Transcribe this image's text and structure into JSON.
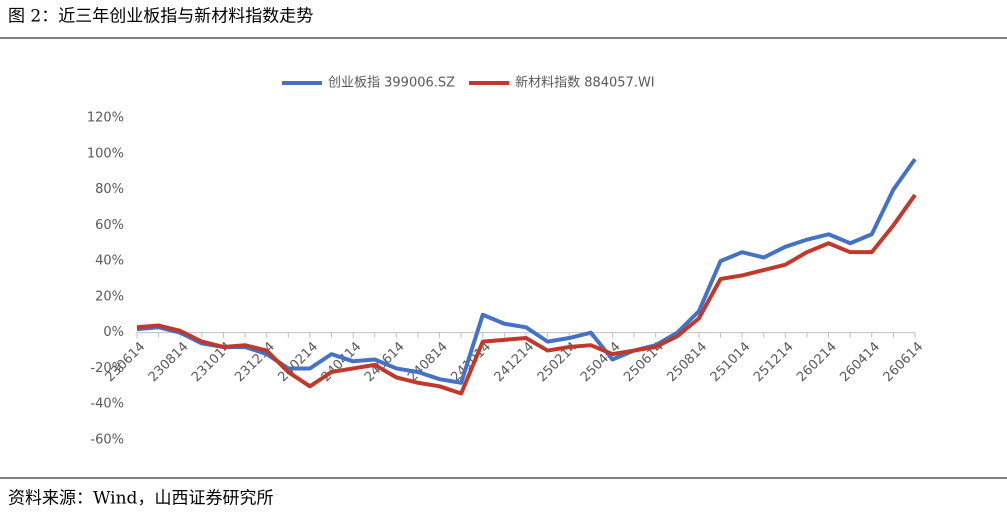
{
  "chart_data": {
    "type": "line",
    "title": "图 2：近三年创业板指与新材料指数走势",
    "source": "资料来源：Wind，山西证券研究所",
    "categories": [
      "230614",
      null,
      "230814",
      null,
      "231014",
      null,
      "231214",
      null,
      "240214",
      null,
      "240414",
      null,
      "240614",
      null,
      "240814",
      null,
      "241014",
      null,
      "241214",
      null,
      "250214",
      null,
      "250414",
      null,
      "250614",
      null,
      "250814",
      null,
      "251014",
      null,
      "251214",
      null,
      "260214",
      null,
      "260414",
      null,
      "260614"
    ],
    "series": [
      {
        "name": "创业板指 399006.SZ",
        "color": "#4472c4",
        "values": [
          2,
          3,
          0,
          -6,
          -8,
          -8,
          -12,
          -20,
          -20,
          -12,
          -16,
          -15,
          -20,
          -22,
          -26,
          -28,
          10,
          5,
          3,
          -5,
          -3,
          0,
          -15,
          -10,
          -7,
          0,
          12,
          40,
          45,
          42,
          48,
          52,
          55,
          50,
          55,
          80,
          97
        ]
      },
      {
        "name": "新材料指数 884057.WI",
        "color": "#c0392b",
        "values": [
          3,
          4,
          1,
          -5,
          -8,
          -7,
          -10,
          -22,
          -30,
          -22,
          -20,
          -18,
          -25,
          -28,
          -30,
          -34,
          -5,
          -4,
          -3,
          -10,
          -8,
          -7,
          -12,
          -10,
          -8,
          -2,
          8,
          30,
          32,
          35,
          38,
          45,
          50,
          45,
          45,
          60,
          77
        ]
      }
    ],
    "ylim": [
      -60,
      120
    ],
    "yticks": [
      {
        "value": -60,
        "label": "-60%"
      },
      {
        "value": -40,
        "label": "-40%"
      },
      {
        "value": -20,
        "label": "-20%"
      },
      {
        "value": 0,
        "label": "0%"
      },
      {
        "value": 20,
        "label": "20%"
      },
      {
        "value": 40,
        "label": "40%"
      },
      {
        "value": 60,
        "label": "60%"
      },
      {
        "value": 80,
        "label": "80%"
      },
      {
        "value": 100,
        "label": "100%"
      },
      {
        "value": 120,
        "label": "120%"
      }
    ],
    "grid": false
  }
}
